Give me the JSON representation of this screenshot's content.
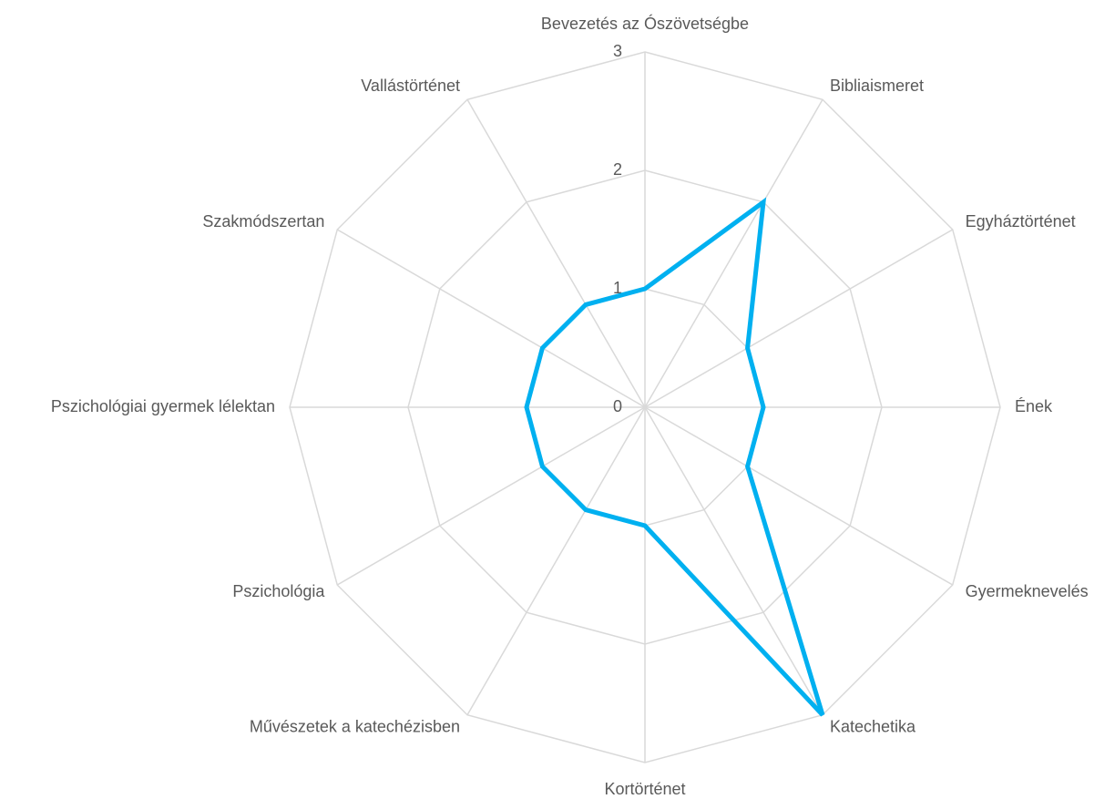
{
  "chart_data": {
    "type": "radar",
    "categories": [
      "Bevezetés az Ószövetségbe",
      "Bibliaismeret",
      "Egyháztörténet",
      "Ének",
      "Gyermeknevelés",
      "Katechetika",
      "Kortörténet",
      "Művészetek a katechézisben",
      "Pszichológia",
      "Pszichológiai gyermek lélektan",
      "Szakmódszertan",
      "Vallástörténet"
    ],
    "values": [
      1,
      2,
      1,
      1,
      1,
      3,
      1,
      1,
      1,
      1,
      1,
      1
    ],
    "color": "#00b0f0",
    "ylim": [
      0,
      3
    ],
    "yticks": [
      0,
      1,
      2,
      3
    ],
    "grid": true
  }
}
